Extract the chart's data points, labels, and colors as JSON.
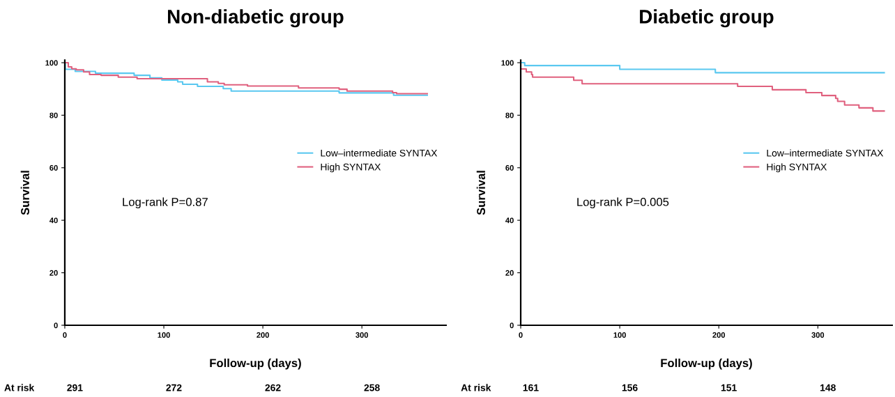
{
  "chart_data": [
    {
      "type": "step",
      "title": "Non-diabetic group",
      "xlabel": "Follow-up (days)",
      "ylabel": "Survival",
      "xlim": [
        0,
        385
      ],
      "ylim": [
        0,
        101
      ],
      "xticks": [
        0,
        100,
        200,
        300
      ],
      "yticks": [
        0,
        20,
        40,
        60,
        80,
        100
      ],
      "grid": false,
      "legend": "right",
      "annotations": [
        "Log-rank P=0.87",
        "At risk",
        "291",
        "272",
        "262",
        "258"
      ],
      "series": [
        {
          "name": "Low–intermediate SYNTAX",
          "color": "#5ac8f0",
          "x": [
            0,
            0.5,
            10.5,
            31,
            70,
            86,
            98,
            114,
            119,
            134,
            160,
            168,
            277,
            332,
            366
          ],
          "values": [
            100,
            97.5,
            96.7,
            96.0,
            95.2,
            94.2,
            93.4,
            92.7,
            91.8,
            91.0,
            90.1,
            89.2,
            88.5,
            87.6,
            87.6
          ]
        },
        {
          "name": "High SYNTAX",
          "color": "#e0607e",
          "x": [
            0,
            3.5,
            7,
            11.5,
            19,
            25,
            36.6,
            54,
            73,
            144,
            155,
            161,
            184.5,
            236,
            277,
            285,
            331,
            335,
            366
          ],
          "values": [
            100,
            98.4,
            97.7,
            97.3,
            96.5,
            95.5,
            95.2,
            94.5,
            93.9,
            92.7,
            92.1,
            91.6,
            91.1,
            90.4,
            89.9,
            89.2,
            88.6,
            88.2,
            88.2
          ]
        }
      ]
    },
    {
      "type": "step",
      "title": "Diabetic group",
      "xlabel": "Follow-up (days)",
      "ylabel": "Survival",
      "xlim": [
        0,
        375
      ],
      "ylim": [
        0,
        101
      ],
      "xticks": [
        0,
        100,
        200,
        300
      ],
      "yticks": [
        0,
        20,
        40,
        60,
        80,
        100
      ],
      "grid": false,
      "legend": "right",
      "annotations": [
        "Log-rank P=0.005",
        "At risk",
        "161",
        "156",
        "151",
        "148"
      ],
      "series": [
        {
          "name": "Low–intermediate SYNTAX",
          "color": "#5ac8f0",
          "x": [
            0,
            4,
            100,
            196.5,
            367
          ],
          "values": [
            100,
            98.9,
            97.5,
            96.2,
            96.2
          ]
        },
        {
          "name": "High SYNTAX",
          "color": "#e0607e",
          "x": [
            0,
            5.6,
            11,
            12,
            53.5,
            62,
            219,
            254,
            288,
            304,
            318,
            320,
            327,
            341.5,
            355.6,
            367
          ],
          "values": [
            97.6,
            96.5,
            95.5,
            94.5,
            93.3,
            92.0,
            91.0,
            89.7,
            88.6,
            87.5,
            86.4,
            85.3,
            83.9,
            82.8,
            81.6,
            81.6
          ]
        }
      ]
    }
  ]
}
